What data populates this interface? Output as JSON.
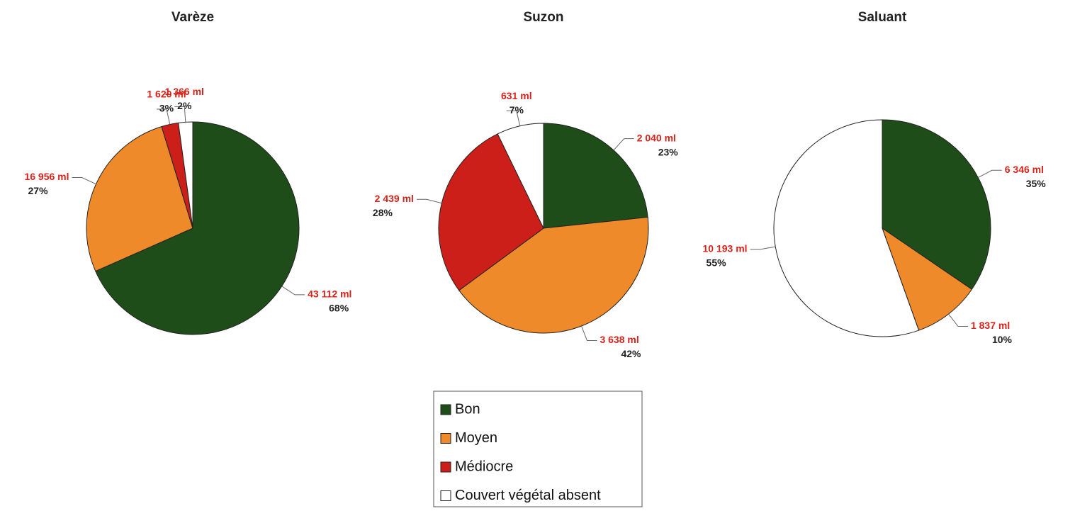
{
  "chart_data": [
    {
      "type": "pie",
      "title": "Varèze",
      "values": [
        43112,
        16956,
        1620,
        1366
      ],
      "value_labels": [
        "43 112 ml",
        "16 956 ml",
        "1 620 ml",
        "1 366 ml"
      ],
      "percents": [
        68,
        27,
        3,
        2
      ],
      "percent_labels": [
        "68%",
        "27%",
        "3%",
        "2%"
      ]
    },
    {
      "type": "pie",
      "title": "Suzon",
      "values": [
        2040,
        3638,
        2439,
        631
      ],
      "value_labels": [
        "2 040 ml",
        "3 638 ml",
        "2 439 ml",
        "631 ml"
      ],
      "percents": [
        23,
        42,
        28,
        7
      ],
      "percent_labels": [
        "23%",
        "42%",
        "28%",
        "7%"
      ]
    },
    {
      "type": "pie",
      "title": "Saluant",
      "values": [
        6346,
        1837,
        null,
        10193
      ],
      "value_labels": [
        "6 346 ml",
        "1 837 ml",
        null,
        "10 193 ml"
      ],
      "percents": [
        35,
        10,
        null,
        55
      ],
      "percent_labels": [
        "35%",
        "10%",
        null,
        "55%"
      ]
    }
  ],
  "legend": {
    "categories": [
      "Bon",
      "Moyen",
      "Médiocre",
      "Couvert végétal absent"
    ],
    "colors": [
      "#1f4d1a",
      "#ee8a2a",
      "#cc1f1a",
      "#ffffff"
    ]
  }
}
